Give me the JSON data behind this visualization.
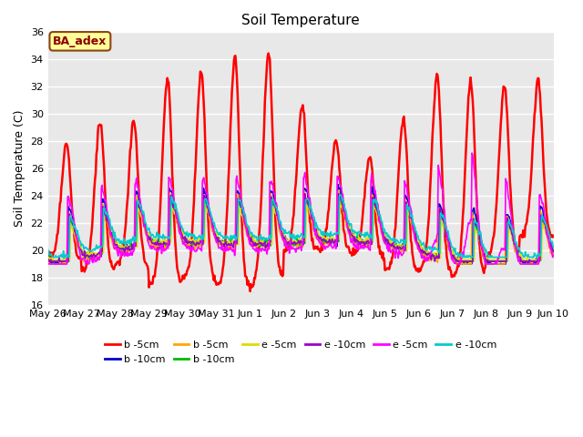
{
  "title": "Soil Temperature",
  "ylabel": "Soil Temperature (C)",
  "ylim": [
    16,
    36
  ],
  "yticks": [
    16,
    18,
    20,
    22,
    24,
    26,
    28,
    30,
    32,
    34,
    36
  ],
  "background_color": "#e8e8e8",
  "annotation_text": "BA_adex",
  "annotation_bg": "#ffff99",
  "annotation_border": "#8b4513",
  "legend_entries": [
    {
      "label": "b -5cm",
      "color": "#ff0000",
      "lw": 1.8
    },
    {
      "label": "b -10cm",
      "color": "#0000cc",
      "lw": 1.2
    },
    {
      "label": "b -5cm",
      "color": "#ffa500",
      "lw": 1.2
    },
    {
      "label": "b -10cm",
      "color": "#00bb00",
      "lw": 1.2
    },
    {
      "label": "e -5cm",
      "color": "#dddd00",
      "lw": 1.2
    },
    {
      "label": "e -10cm",
      "color": "#9900cc",
      "lw": 1.2
    },
    {
      "label": "e -5cm",
      "color": "#ff00ff",
      "lw": 1.2
    },
    {
      "label": "e -10cm",
      "color": "#00cccc",
      "lw": 1.2
    }
  ],
  "date_labels": [
    "May 26",
    "May 27",
    "May 28",
    "May 29",
    "May 30",
    "May 31",
    "Jun 1",
    "Jun 2",
    "Jun 3",
    "Jun 4",
    "Jun 5",
    "Jun 6",
    "Jun 7",
    "Jun 8",
    "Jun 9",
    "Jun 10"
  ],
  "total_days": 15
}
